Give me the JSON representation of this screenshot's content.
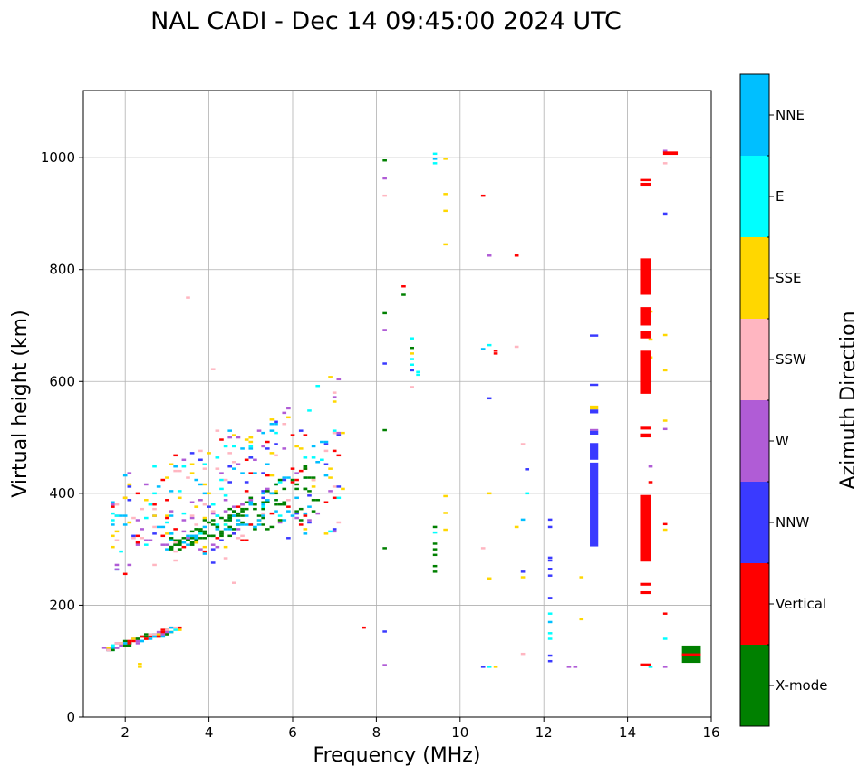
{
  "chart_data": {
    "type": "scatter",
    "title": "NAL CADI - Dec 14 09:45:00 2024 UTC",
    "xlabel": "Frequency (MHz)",
    "ylabel": "Virtual height (km)",
    "xlim": [
      1,
      16
    ],
    "ylim": [
      0,
      1120
    ],
    "xticks": [
      "2",
      "4",
      "6",
      "8",
      "10",
      "12",
      "14",
      "16"
    ],
    "yticks": [
      "0",
      "200",
      "400",
      "600",
      "800",
      "1000"
    ],
    "grid": true,
    "colorbar": {
      "label": "Azimuth Direction",
      "categories": [
        "X-mode",
        "Vertical",
        "NNW",
        "W",
        "SSW",
        "SSE",
        "E",
        "NNE"
      ],
      "colors": [
        "#008000",
        "#ff0000",
        "#3a3aff",
        "#b05cd6",
        "#ffb6c1",
        "#ffd700",
        "#00ffff",
        "#00bfff"
      ]
    },
    "point_size_mhz": 0.1,
    "point_size_km": 4,
    "trace_clusters": [
      {
        "label": "F-layer ordinary trace",
        "seed": 11,
        "count": 320,
        "f_range": [
          1.6,
          7.2
        ],
        "h_lo": [
          270,
          330
        ],
        "h_hi": [
          400,
          600
        ],
        "spread_km": 45,
        "cats": [
          "Vertical",
          "SSW",
          "SSE",
          "E",
          "W",
          "NNW",
          "NNE"
        ]
      },
      {
        "label": "F-layer X-mode trace",
        "seed": 23,
        "count": 140,
        "f_range": [
          3.0,
          6.6
        ],
        "h_lo": [
          300,
          360
        ],
        "h_hi": [
          310,
          460
        ],
        "spread_km": 15,
        "cats": [
          "X-mode",
          "X-mode",
          "X-mode",
          "NNE"
        ]
      },
      {
        "label": "E-layer trace",
        "seed": 37,
        "count": 90,
        "f_range": [
          1.5,
          3.3
        ],
        "h_lo": [
          120,
          160
        ],
        "h_hi": [
          120,
          160
        ],
        "spread_km": 10,
        "cats": [
          "SSW",
          "E",
          "NNE",
          "Vertical",
          "SSE",
          "W",
          "X-mode"
        ]
      }
    ],
    "isolated_points": [
      {
        "f": 2.35,
        "h": 90,
        "c": "SSE"
      },
      {
        "f": 2.35,
        "h": 95,
        "c": "SSE"
      },
      {
        "f": 3.5,
        "h": 750,
        "c": "SSW"
      },
      {
        "f": 4.1,
        "h": 622,
        "c": "SSW"
      },
      {
        "f": 4.6,
        "h": 240,
        "c": "SSW"
      },
      {
        "f": 7.7,
        "h": 160,
        "c": "Vertical"
      },
      {
        "f": 8.2,
        "h": 995,
        "c": "X-mode"
      },
      {
        "f": 8.2,
        "h": 963,
        "c": "W"
      },
      {
        "f": 8.2,
        "h": 932,
        "c": "SSW"
      },
      {
        "f": 8.2,
        "h": 722,
        "c": "X-mode"
      },
      {
        "f": 8.2,
        "h": 692,
        "c": "W"
      },
      {
        "f": 8.2,
        "h": 632,
        "c": "NNW"
      },
      {
        "f": 8.2,
        "h": 513,
        "c": "X-mode"
      },
      {
        "f": 8.2,
        "h": 302,
        "c": "X-mode"
      },
      {
        "f": 8.2,
        "h": 153,
        "c": "NNW"
      },
      {
        "f": 8.2,
        "h": 93,
        "c": "W"
      },
      {
        "f": 8.65,
        "h": 770,
        "c": "Vertical"
      },
      {
        "f": 8.65,
        "h": 755,
        "c": "X-mode"
      },
      {
        "f": 8.85,
        "h": 677,
        "c": "E"
      },
      {
        "f": 8.85,
        "h": 660,
        "c": "X-mode"
      },
      {
        "f": 8.85,
        "h": 650,
        "c": "SSE"
      },
      {
        "f": 8.85,
        "h": 640,
        "c": "E"
      },
      {
        "f": 8.85,
        "h": 630,
        "c": "E"
      },
      {
        "f": 8.85,
        "h": 620,
        "c": "NNW"
      },
      {
        "f": 8.85,
        "h": 590,
        "c": "SSW"
      },
      {
        "f": 9.0,
        "h": 617,
        "c": "E"
      },
      {
        "f": 9.0,
        "h": 612,
        "c": "E"
      },
      {
        "f": 9.4,
        "h": 1007,
        "c": "E"
      },
      {
        "f": 9.4,
        "h": 998,
        "c": "NNE"
      },
      {
        "f": 9.4,
        "h": 990,
        "c": "E"
      },
      {
        "f": 9.4,
        "h": 340,
        "c": "X-mode"
      },
      {
        "f": 9.4,
        "h": 330,
        "c": "E"
      },
      {
        "f": 9.4,
        "h": 310,
        "c": "X-mode"
      },
      {
        "f": 9.4,
        "h": 300,
        "c": "X-mode"
      },
      {
        "f": 9.4,
        "h": 290,
        "c": "X-mode"
      },
      {
        "f": 9.4,
        "h": 270,
        "c": "X-mode"
      },
      {
        "f": 9.4,
        "h": 260,
        "c": "X-mode"
      },
      {
        "f": 9.65,
        "h": 998,
        "c": "SSE"
      },
      {
        "f": 9.65,
        "h": 935,
        "c": "SSE"
      },
      {
        "f": 9.65,
        "h": 905,
        "c": "SSE"
      },
      {
        "f": 9.65,
        "h": 845,
        "c": "SSE"
      },
      {
        "f": 9.65,
        "h": 395,
        "c": "SSE"
      },
      {
        "f": 9.65,
        "h": 365,
        "c": "SSE"
      },
      {
        "f": 9.65,
        "h": 335,
        "c": "SSE"
      },
      {
        "f": 10.55,
        "h": 932,
        "c": "Vertical"
      },
      {
        "f": 10.55,
        "h": 658,
        "c": "NNE"
      },
      {
        "f": 10.55,
        "h": 302,
        "c": "SSW"
      },
      {
        "f": 10.55,
        "h": 90,
        "c": "NNW"
      },
      {
        "f": 10.7,
        "h": 825,
        "c": "W"
      },
      {
        "f": 10.7,
        "h": 665,
        "c": "E"
      },
      {
        "f": 10.7,
        "h": 570,
        "c": "NNW"
      },
      {
        "f": 10.7,
        "h": 400,
        "c": "SSE"
      },
      {
        "f": 10.7,
        "h": 248,
        "c": "SSE"
      },
      {
        "f": 10.7,
        "h": 90,
        "c": "E"
      },
      {
        "f": 10.85,
        "h": 655,
        "c": "Vertical"
      },
      {
        "f": 10.85,
        "h": 650,
        "c": "Vertical"
      },
      {
        "f": 10.85,
        "h": 90,
        "c": "SSE"
      },
      {
        "f": 11.35,
        "h": 825,
        "c": "Vertical"
      },
      {
        "f": 11.35,
        "h": 662,
        "c": "SSW"
      },
      {
        "f": 11.35,
        "h": 340,
        "c": "SSE"
      },
      {
        "f": 11.5,
        "h": 488,
        "c": "SSW"
      },
      {
        "f": 11.5,
        "h": 353,
        "c": "NNE"
      },
      {
        "f": 11.5,
        "h": 260,
        "c": "NNW"
      },
      {
        "f": 11.5,
        "h": 250,
        "c": "SSE"
      },
      {
        "f": 11.5,
        "h": 113,
        "c": "SSW"
      },
      {
        "f": 11.6,
        "h": 443,
        "c": "NNW"
      },
      {
        "f": 11.6,
        "h": 400,
        "c": "E"
      },
      {
        "f": 12.15,
        "h": 353,
        "c": "NNW"
      },
      {
        "f": 12.15,
        "h": 340,
        "c": "NNW"
      },
      {
        "f": 12.15,
        "h": 285,
        "c": "NNW"
      },
      {
        "f": 12.15,
        "h": 280,
        "c": "NNW"
      },
      {
        "f": 12.15,
        "h": 265,
        "c": "NNW"
      },
      {
        "f": 12.15,
        "h": 253,
        "c": "NNW"
      },
      {
        "f": 12.15,
        "h": 213,
        "c": "NNW"
      },
      {
        "f": 12.15,
        "h": 185,
        "c": "E"
      },
      {
        "f": 12.15,
        "h": 170,
        "c": "NNE"
      },
      {
        "f": 12.15,
        "h": 150,
        "c": "E"
      },
      {
        "f": 12.15,
        "h": 140,
        "c": "E"
      },
      {
        "f": 12.15,
        "h": 110,
        "c": "NNW"
      },
      {
        "f": 12.15,
        "h": 100,
        "c": "NNW"
      },
      {
        "f": 12.6,
        "h": 90,
        "c": "W"
      },
      {
        "f": 12.75,
        "h": 90,
        "c": "W"
      },
      {
        "f": 12.9,
        "h": 250,
        "c": "SSE"
      },
      {
        "f": 12.9,
        "h": 175,
        "c": "SSE"
      },
      {
        "f": 14.55,
        "h": 725,
        "c": "SSE"
      },
      {
        "f": 14.55,
        "h": 675,
        "c": "SSE"
      },
      {
        "f": 14.55,
        "h": 643,
        "c": "SSE"
      },
      {
        "f": 14.55,
        "h": 448,
        "c": "W"
      },
      {
        "f": 14.55,
        "h": 420,
        "c": "Vertical"
      },
      {
        "f": 14.55,
        "h": 90,
        "c": "E"
      },
      {
        "f": 14.9,
        "h": 1012,
        "c": "W"
      },
      {
        "f": 14.9,
        "h": 990,
        "c": "SSW"
      },
      {
        "f": 14.9,
        "h": 900,
        "c": "NNW"
      },
      {
        "f": 14.9,
        "h": 683,
        "c": "SSE"
      },
      {
        "f": 14.9,
        "h": 620,
        "c": "SSE"
      },
      {
        "f": 14.9,
        "h": 530,
        "c": "SSE"
      },
      {
        "f": 14.9,
        "h": 515,
        "c": "W"
      },
      {
        "f": 14.9,
        "h": 345,
        "c": "Vertical"
      },
      {
        "f": 14.9,
        "h": 335,
        "c": "SSE"
      },
      {
        "f": 14.9,
        "h": 185,
        "c": "Vertical"
      },
      {
        "f": 14.9,
        "h": 140,
        "c": "E"
      },
      {
        "f": 14.9,
        "h": 90,
        "c": "W"
      }
    ],
    "segments": [
      {
        "f0": 13.1,
        "f1": 13.3,
        "h0": 305,
        "h1": 455,
        "c": "NNW"
      },
      {
        "f0": 13.1,
        "f1": 13.3,
        "h0": 460,
        "h1": 490,
        "c": "NNW"
      },
      {
        "f0": 13.1,
        "f1": 13.3,
        "h0": 505,
        "h1": 512,
        "c": "NNW"
      },
      {
        "f0": 13.1,
        "f1": 13.3,
        "h0": 512,
        "h1": 515,
        "c": "W"
      },
      {
        "f0": 13.1,
        "f1": 13.3,
        "h0": 543,
        "h1": 550,
        "c": "NNW"
      },
      {
        "f0": 13.1,
        "f1": 13.3,
        "h0": 550,
        "h1": 557,
        "c": "SSE"
      },
      {
        "f0": 13.1,
        "f1": 13.3,
        "h0": 592,
        "h1": 596,
        "c": "NNW"
      },
      {
        "f0": 13.1,
        "f1": 13.3,
        "h0": 680,
        "h1": 684,
        "c": "NNW"
      },
      {
        "f0": 14.3,
        "f1": 14.55,
        "h0": 278,
        "h1": 397,
        "c": "Vertical"
      },
      {
        "f0": 14.3,
        "f1": 14.55,
        "h0": 578,
        "h1": 655,
        "c": "Vertical"
      },
      {
        "f0": 14.3,
        "f1": 14.55,
        "h0": 677,
        "h1": 690,
        "c": "Vertical"
      },
      {
        "f0": 14.3,
        "f1": 14.55,
        "h0": 700,
        "h1": 733,
        "c": "Vertical"
      },
      {
        "f0": 14.3,
        "f1": 14.55,
        "h0": 755,
        "h1": 820,
        "c": "Vertical"
      },
      {
        "f0": 14.3,
        "f1": 14.55,
        "h0": 950,
        "h1": 955,
        "c": "Vertical"
      },
      {
        "f0": 14.3,
        "f1": 14.55,
        "h0": 958,
        "h1": 962,
        "c": "Vertical"
      },
      {
        "f0": 14.3,
        "f1": 14.55,
        "h0": 500,
        "h1": 507,
        "c": "Vertical"
      },
      {
        "f0": 14.3,
        "f1": 14.55,
        "h0": 514,
        "h1": 519,
        "c": "Vertical"
      },
      {
        "f0": 14.3,
        "f1": 14.55,
        "h0": 235,
        "h1": 240,
        "c": "Vertical"
      },
      {
        "f0": 14.3,
        "f1": 14.55,
        "h0": 220,
        "h1": 225,
        "c": "Vertical"
      },
      {
        "f0": 14.3,
        "f1": 14.55,
        "h0": 92,
        "h1": 96,
        "c": "Vertical"
      },
      {
        "f0": 14.85,
        "f1": 15.2,
        "h0": 1005,
        "h1": 1011,
        "c": "Vertical"
      },
      {
        "f0": 15.3,
        "f1": 15.75,
        "h0": 97,
        "h1": 128,
        "c": "X-mode"
      },
      {
        "f0": 15.3,
        "f1": 15.75,
        "h0": 110,
        "h1": 114,
        "c": "Vertical"
      }
    ]
  }
}
